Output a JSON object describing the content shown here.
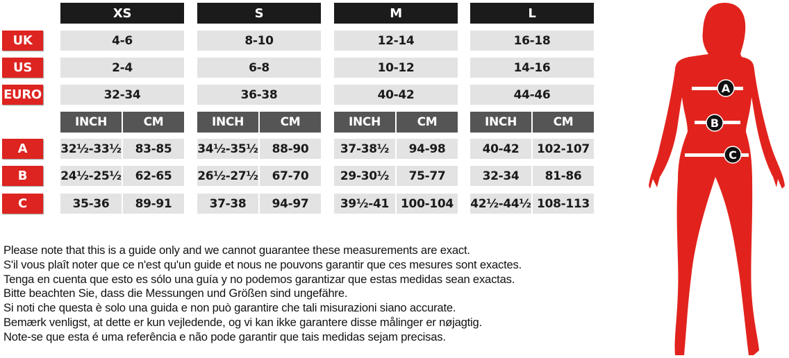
{
  "sizes": [
    {
      "name": "XS",
      "uk": "4-6",
      "us": "2-4",
      "euro": "32-34",
      "a": [
        "32½-33½",
        "83-85"
      ],
      "b": [
        "24½-25½",
        "62-65"
      ],
      "c": [
        "35-36",
        "89-91"
      ]
    },
    {
      "name": "S",
      "uk": "8-10",
      "us": "6-8",
      "euro": "36-38",
      "a": [
        "34½-35½",
        "88-90"
      ],
      "b": [
        "26½-27½",
        "67-70"
      ],
      "c": [
        "37-38",
        "94-97"
      ]
    },
    {
      "name": "M",
      "uk": "12-14",
      "us": "10-12",
      "euro": "40-42",
      "a": [
        "37-38½",
        "94-98"
      ],
      "b": [
        "29-30½",
        "75-77"
      ],
      "c": [
        "39½-41",
        "100-104"
      ]
    },
    {
      "name": "L",
      "uk": "16-18",
      "us": "14-16",
      "euro": "44-46",
      "a": [
        "40-42",
        "102-107"
      ],
      "b": [
        "32-34",
        "81-86"
      ],
      "c": [
        "42½-44½",
        "108-113"
      ]
    }
  ],
  "row_labels": {
    "uk": "UK",
    "us": "US",
    "euro": "EURO",
    "a": "A",
    "b": "B",
    "c": "C"
  },
  "units": {
    "inch": "INCH",
    "cm": "CM"
  },
  "figure": {
    "markers": [
      "A",
      "B",
      "C"
    ]
  },
  "notes": [
    "Please note that this is a guide only and we cannot guarantee these measurements are exact.",
    "S'il vous plaît noter que ce n'est qu'un guide et nous ne pouvons garantir que ces mesures sont exactes.",
    "Tenga en cuenta que esto es sólo una guía y no podemos garantizar que estas medidas sean exactas.",
    "Bitte beachten Sie, dass die Messungen und Größen sind ungefähre.",
    "Si noti che questa è solo una guida e non può garantire che tali misurazioni siano accurate.",
    "Bemærk venligst, at dette er kun vejledende, og vi kan ikke garantere disse målinger er nøjagtig.",
    "Note-se que esta é uma referência e não pode garantir que tais medidas sejam precisas."
  ],
  "colors": {
    "red": "#dd2420",
    "header": "#1b1b1b",
    "unit_header": "#555555",
    "cell": "#e3e3e3"
  }
}
